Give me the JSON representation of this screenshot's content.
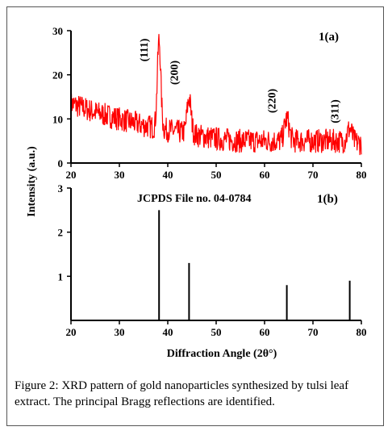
{
  "chart_data": [
    {
      "id": "a",
      "type": "line",
      "panel_label": "1(a)",
      "ylabel": "Intensity (a.u.)",
      "xlim": [
        20,
        80
      ],
      "ylim": [
        0,
        30
      ],
      "xticks": [
        20,
        30,
        40,
        50,
        60,
        70,
        80
      ],
      "yticks": [
        0,
        10,
        20,
        30
      ],
      "color": "#ff0000",
      "series": [
        {
          "baseline": [
            [
              20,
              13.5
            ],
            [
              25,
              11.5
            ],
            [
              30,
              10
            ],
            [
              35,
              8.5
            ],
            [
              40,
              7.5
            ],
            [
              45,
              6.5
            ],
            [
              50,
              5.5
            ],
            [
              55,
              5
            ],
            [
              60,
              5
            ],
            [
              65,
              5
            ],
            [
              70,
              5
            ],
            [
              75,
              5
            ],
            [
              80,
              4.5
            ]
          ],
          "peaks": [
            {
              "x": 38.2,
              "height": 20,
              "width": 0.5
            },
            {
              "x": 44.4,
              "height": 8,
              "width": 0.6
            },
            {
              "x": 64.6,
              "height": 5,
              "width": 0.7
            },
            {
              "x": 77.6,
              "height": 3,
              "width": 0.7
            }
          ]
        }
      ],
      "annotations": [
        {
          "text": "(111)",
          "x": 38.2
        },
        {
          "text": "(200)",
          "x": 44.4
        },
        {
          "text": "(220)",
          "x": 64.6
        },
        {
          "text": "(311)",
          "x": 77.6
        }
      ]
    },
    {
      "id": "b",
      "type": "bar",
      "panel_label": "1(b)",
      "subtitle": "JCPDS File no. 04-0784",
      "xlabel": "Diffraction Angle (2θ°)",
      "xlim": [
        20,
        80
      ],
      "ylim": [
        0,
        3
      ],
      "xticks": [
        20,
        30,
        40,
        50,
        60,
        70,
        80
      ],
      "yticks": [
        1,
        2,
        3
      ],
      "color": "#000000",
      "x": [
        38.2,
        44.4,
        64.6,
        77.6
      ],
      "values": [
        2.5,
        1.3,
        0.8,
        0.9
      ]
    }
  ],
  "caption": {
    "figure_label": "Figure 2:",
    "text": " XRD pattern of gold nanoparticles synthesized by tulsi leaf extract. The principal Bragg reflections are identified."
  }
}
